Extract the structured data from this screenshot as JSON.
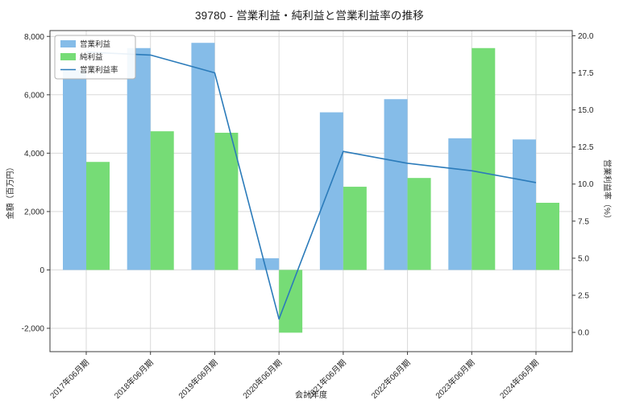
{
  "title": "39780 - 営業利益・純利益と営業利益率の推移",
  "chart_data": {
    "type": "bar",
    "categories": [
      "2017年06月期",
      "2018年06月期",
      "2019年06月期",
      "2020年06月期",
      "2021年06月期",
      "2022年06月期",
      "2023年06月期",
      "2024年06月期"
    ],
    "series": [
      {
        "name": "営業利益",
        "type": "bar",
        "axis": "left",
        "color": "#85bce8",
        "values": [
          6850,
          7600,
          7780,
          400,
          5400,
          5850,
          4510,
          4470
        ]
      },
      {
        "name": "純利益",
        "type": "bar",
        "axis": "left",
        "color": "#76dc76",
        "values": [
          3700,
          4750,
          4700,
          -2150,
          2850,
          3150,
          7600,
          2300
        ]
      },
      {
        "name": "営業利益率",
        "type": "line",
        "axis": "right",
        "color": "#2b7bba",
        "values": [
          18.9,
          18.7,
          17.5,
          0.9,
          12.2,
          11.4,
          10.9,
          10.1
        ]
      }
    ],
    "xlabel": "会計年度",
    "ylabel_left": "金額（百万円）",
    "ylabel_right": "営業利益率（%）",
    "yticks_left": [
      -2000,
      0,
      2000,
      4000,
      6000,
      8000
    ],
    "ytick_labels_left": [
      "-2,000",
      "0",
      "2,000",
      "4,000",
      "6,000",
      "8,000"
    ],
    "yticks_right": [
      0.0,
      2.5,
      5.0,
      7.5,
      10.0,
      12.5,
      15.0,
      17.5,
      20.0
    ],
    "ytick_labels_right": [
      "0.0",
      "2.5",
      "5.0",
      "7.5",
      "10.0",
      "12.5",
      "15.0",
      "17.5",
      "20.0"
    ],
    "ylim_left": [
      -2800,
      8200
    ],
    "ylim_right": [
      -1.3,
      20.35
    ],
    "grid": true,
    "legend_position": "upper-left",
    "colors": {
      "grid": "#d9d9d9",
      "spine": "#3c3c3c",
      "tick_text": "#262626",
      "background": "#ffffff",
      "legend_border": "#b3b3b3"
    }
  }
}
